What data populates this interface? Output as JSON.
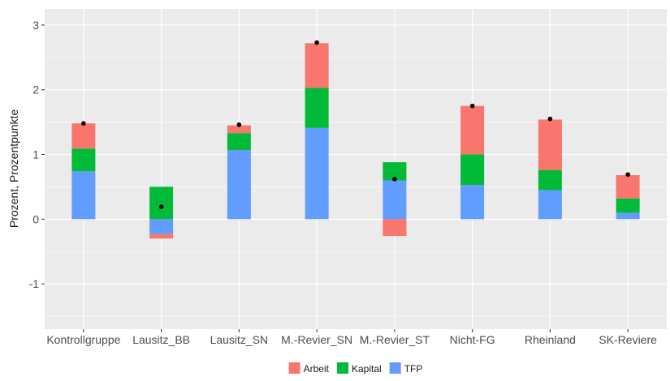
{
  "chart_data": {
    "type": "bar",
    "stacked": true,
    "categories": [
      "Kontrollgruppe",
      "Lausitz_BB",
      "Lausitz_SN",
      "M.-Revier_SN",
      "M.-Revier_ST",
      "Nicht-FG",
      "Rheinland",
      "SK-Reviere"
    ],
    "series": [
      {
        "name": "TFP",
        "color": "#619CFF",
        "values": [
          0.74,
          -0.23,
          1.07,
          1.41,
          0.6,
          0.53,
          0.45,
          0.1
        ]
      },
      {
        "name": "Kapital",
        "color": "#00BA38",
        "values": [
          0.35,
          0.5,
          0.26,
          0.62,
          0.28,
          0.47,
          0.31,
          0.22
        ]
      },
      {
        "name": "Arbeit",
        "color": "#F8766D",
        "values": [
          0.39,
          -0.07,
          0.12,
          0.69,
          -0.26,
          0.75,
          0.78,
          0.36
        ]
      }
    ],
    "totals": [
      1.48,
      0.19,
      1.46,
      2.73,
      0.62,
      1.75,
      1.55,
      0.69
    ],
    "ylabel": "Prozent, Prozentpunkte",
    "xlabel": "",
    "ylim": [
      -1.7,
      3.25
    ],
    "yticks": [
      -1,
      0,
      1,
      2,
      3
    ],
    "grid": true,
    "legend": {
      "position": "bottom",
      "items": [
        {
          "name": "Arbeit",
          "color": "#F8766D"
        },
        {
          "name": "Kapital",
          "color": "#00BA38"
        },
        {
          "name": "TFP",
          "color": "#619CFF"
        }
      ]
    },
    "panel_background": "#EBEBEB",
    "grid_color": "#FFFFFF",
    "point_color": "#000000"
  }
}
